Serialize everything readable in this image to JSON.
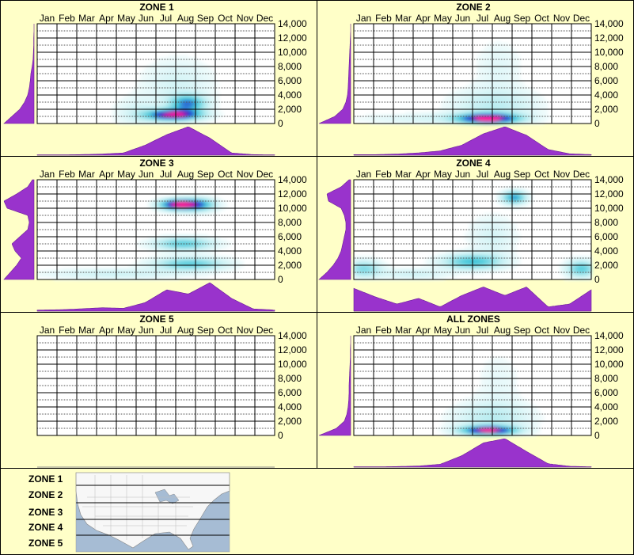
{
  "colors": {
    "background": "#ffffc8",
    "grid": "#000000",
    "density_fill": "#9933cc",
    "heat_low": "#bfeef2",
    "heat_mid": "#3fc6d8",
    "heat_high": "#1a1ad0",
    "heat_peak": "#ff1493"
  },
  "months": [
    "Jan",
    "Feb",
    "Mar",
    "Apr",
    "May",
    "Jun",
    "Jul",
    "Aug",
    "Sep",
    "Oct",
    "Nov",
    "Dec"
  ],
  "y_axis": {
    "ylim": [
      0,
      14000
    ],
    "ticks": [
      {
        "value": 0,
        "label": "0"
      },
      {
        "value": 2000,
        "label": "2,000"
      },
      {
        "value": 4000,
        "label": "4,000"
      },
      {
        "value": 6000,
        "label": "6,000"
      },
      {
        "value": 8000,
        "label": "8,000"
      },
      {
        "value": 10000,
        "label": "10,000"
      },
      {
        "value": 12000,
        "label": "12,000"
      },
      {
        "value": 14000,
        "label": "14,000"
      }
    ]
  },
  "chart_data": [
    {
      "type": "heatmap",
      "title": "ZONE 1",
      "x_unit": "month",
      "y_unit": "elevation",
      "ylim": [
        0,
        14000
      ],
      "hotspots": [
        {
          "month": 7.4,
          "elev": 1200,
          "sm": 0.9,
          "se": 500,
          "w": 1.0
        },
        {
          "month": 8.1,
          "elev": 2800,
          "sm": 0.6,
          "se": 800,
          "w": 0.6
        },
        {
          "month": 7.6,
          "elev": 5500,
          "sm": 1.2,
          "se": 2500,
          "w": 0.12
        },
        {
          "month": 5.6,
          "elev": 1500,
          "sm": 0.8,
          "se": 1500,
          "w": 0.12
        }
      ],
      "month_profile": [
        0.01,
        0.01,
        0.02,
        0.04,
        0.08,
        0.35,
        0.72,
        1.0,
        0.6,
        0.08,
        0.02,
        0.01
      ],
      "elev_profile": [
        0.95,
        0.7,
        0.45,
        0.3,
        0.2,
        0.15,
        0.12,
        0.1,
        0.06,
        0.03,
        0.02,
        0.01,
        0.01,
        0.0,
        0.0
      ],
      "empty": false
    },
    {
      "type": "heatmap",
      "title": "ZONE 2",
      "x_unit": "month",
      "y_unit": "elevation",
      "ylim": [
        0,
        14000
      ],
      "hotspots": [
        {
          "month": 7.3,
          "elev": 700,
          "sm": 1.0,
          "se": 450,
          "w": 1.0
        },
        {
          "month": 7.6,
          "elev": 2500,
          "sm": 1.4,
          "se": 1600,
          "w": 0.2
        },
        {
          "month": 7.8,
          "elev": 8000,
          "sm": 0.8,
          "se": 2500,
          "w": 0.08
        },
        {
          "month": 4.5,
          "elev": 700,
          "sm": 2.5,
          "se": 500,
          "w": 0.12
        }
      ],
      "month_profile": [
        0.02,
        0.02,
        0.04,
        0.08,
        0.15,
        0.35,
        0.75,
        1.0,
        0.7,
        0.2,
        0.05,
        0.02
      ],
      "elev_profile": [
        1.0,
        0.5,
        0.25,
        0.15,
        0.1,
        0.08,
        0.07,
        0.06,
        0.05,
        0.04,
        0.03,
        0.02,
        0.01,
        0.0,
        0.0
      ],
      "empty": false
    },
    {
      "type": "heatmap",
      "title": "ZONE 3",
      "x_unit": "month",
      "y_unit": "elevation",
      "ylim": [
        0,
        14000
      ],
      "hotspots": [
        {
          "month": 7.6,
          "elev": 10500,
          "sm": 0.6,
          "se": 500,
          "w": 1.0
        },
        {
          "month": 8.6,
          "elev": 10500,
          "sm": 0.6,
          "se": 600,
          "w": 0.6
        },
        {
          "month": 7.9,
          "elev": 5000,
          "sm": 1.0,
          "se": 600,
          "w": 0.45
        },
        {
          "month": 8.2,
          "elev": 2200,
          "sm": 1.2,
          "se": 600,
          "w": 0.45
        },
        {
          "month": 4.5,
          "elev": 800,
          "sm": 2.5,
          "se": 500,
          "w": 0.15
        }
      ],
      "month_profile": [
        0.04,
        0.05,
        0.08,
        0.12,
        0.1,
        0.3,
        0.75,
        0.6,
        1.0,
        0.45,
        0.08,
        0.04
      ],
      "elev_profile": [
        0.95,
        0.75,
        0.55,
        0.4,
        0.6,
        0.7,
        0.45,
        0.2,
        0.15,
        0.2,
        0.85,
        0.95,
        0.55,
        0.2,
        0.05
      ],
      "empty": false
    },
    {
      "type": "heatmap",
      "title": "ZONE 4",
      "x_unit": "month",
      "y_unit": "elevation",
      "ylim": [
        0,
        14000
      ],
      "hotspots": [
        {
          "month": 8.6,
          "elev": 11500,
          "sm": 0.4,
          "se": 600,
          "w": 0.6
        },
        {
          "month": 6.5,
          "elev": 2500,
          "sm": 1.0,
          "se": 700,
          "w": 0.5
        },
        {
          "month": 1.0,
          "elev": 1500,
          "sm": 0.6,
          "se": 800,
          "w": 0.35
        },
        {
          "month": 12.0,
          "elev": 1500,
          "sm": 0.5,
          "se": 800,
          "w": 0.45
        },
        {
          "month": 7.5,
          "elev": 6000,
          "sm": 0.8,
          "se": 2000,
          "w": 0.12
        },
        {
          "month": 3.5,
          "elev": 800,
          "sm": 1.2,
          "se": 500,
          "w": 0.15
        }
      ],
      "month_profile": [
        0.8,
        0.5,
        0.25,
        0.45,
        0.15,
        0.55,
        0.85,
        0.55,
        0.85,
        0.15,
        0.25,
        0.75
      ],
      "elev_profile": [
        1.0,
        0.75,
        0.55,
        0.4,
        0.3,
        0.25,
        0.2,
        0.15,
        0.15,
        0.2,
        0.3,
        0.7,
        0.75,
        0.3,
        0.05
      ],
      "empty": false
    },
    {
      "type": "heatmap",
      "title": "ZONE 5",
      "x_unit": "month",
      "y_unit": "elevation",
      "ylim": [
        0,
        14000
      ],
      "hotspots": [],
      "month_profile": [],
      "elev_profile": [],
      "empty": true
    },
    {
      "type": "heatmap",
      "title": "ALL ZONES",
      "x_unit": "month",
      "y_unit": "elevation",
      "ylim": [
        0,
        14000
      ],
      "hotspots": [
        {
          "month": 7.3,
          "elev": 700,
          "sm": 0.9,
          "se": 400,
          "w": 1.0
        },
        {
          "month": 7.5,
          "elev": 2500,
          "sm": 1.3,
          "se": 1500,
          "w": 0.2
        },
        {
          "month": 7.8,
          "elev": 7500,
          "sm": 0.8,
          "se": 3000,
          "w": 0.06
        }
      ],
      "month_profile": [
        0.01,
        0.01,
        0.02,
        0.04,
        0.1,
        0.4,
        0.85,
        1.0,
        0.55,
        0.12,
        0.03,
        0.01
      ],
      "elev_profile": [
        1.0,
        0.45,
        0.2,
        0.12,
        0.08,
        0.06,
        0.05,
        0.05,
        0.04,
        0.03,
        0.02,
        0.01,
        0.01,
        0.0,
        0.0
      ],
      "empty": false
    }
  ],
  "legend": {
    "zones": [
      "ZONE 1",
      "ZONE 2",
      "ZONE 3",
      "ZONE 4",
      "ZONE 5"
    ],
    "map_icon": "us-zone-map-icon"
  }
}
